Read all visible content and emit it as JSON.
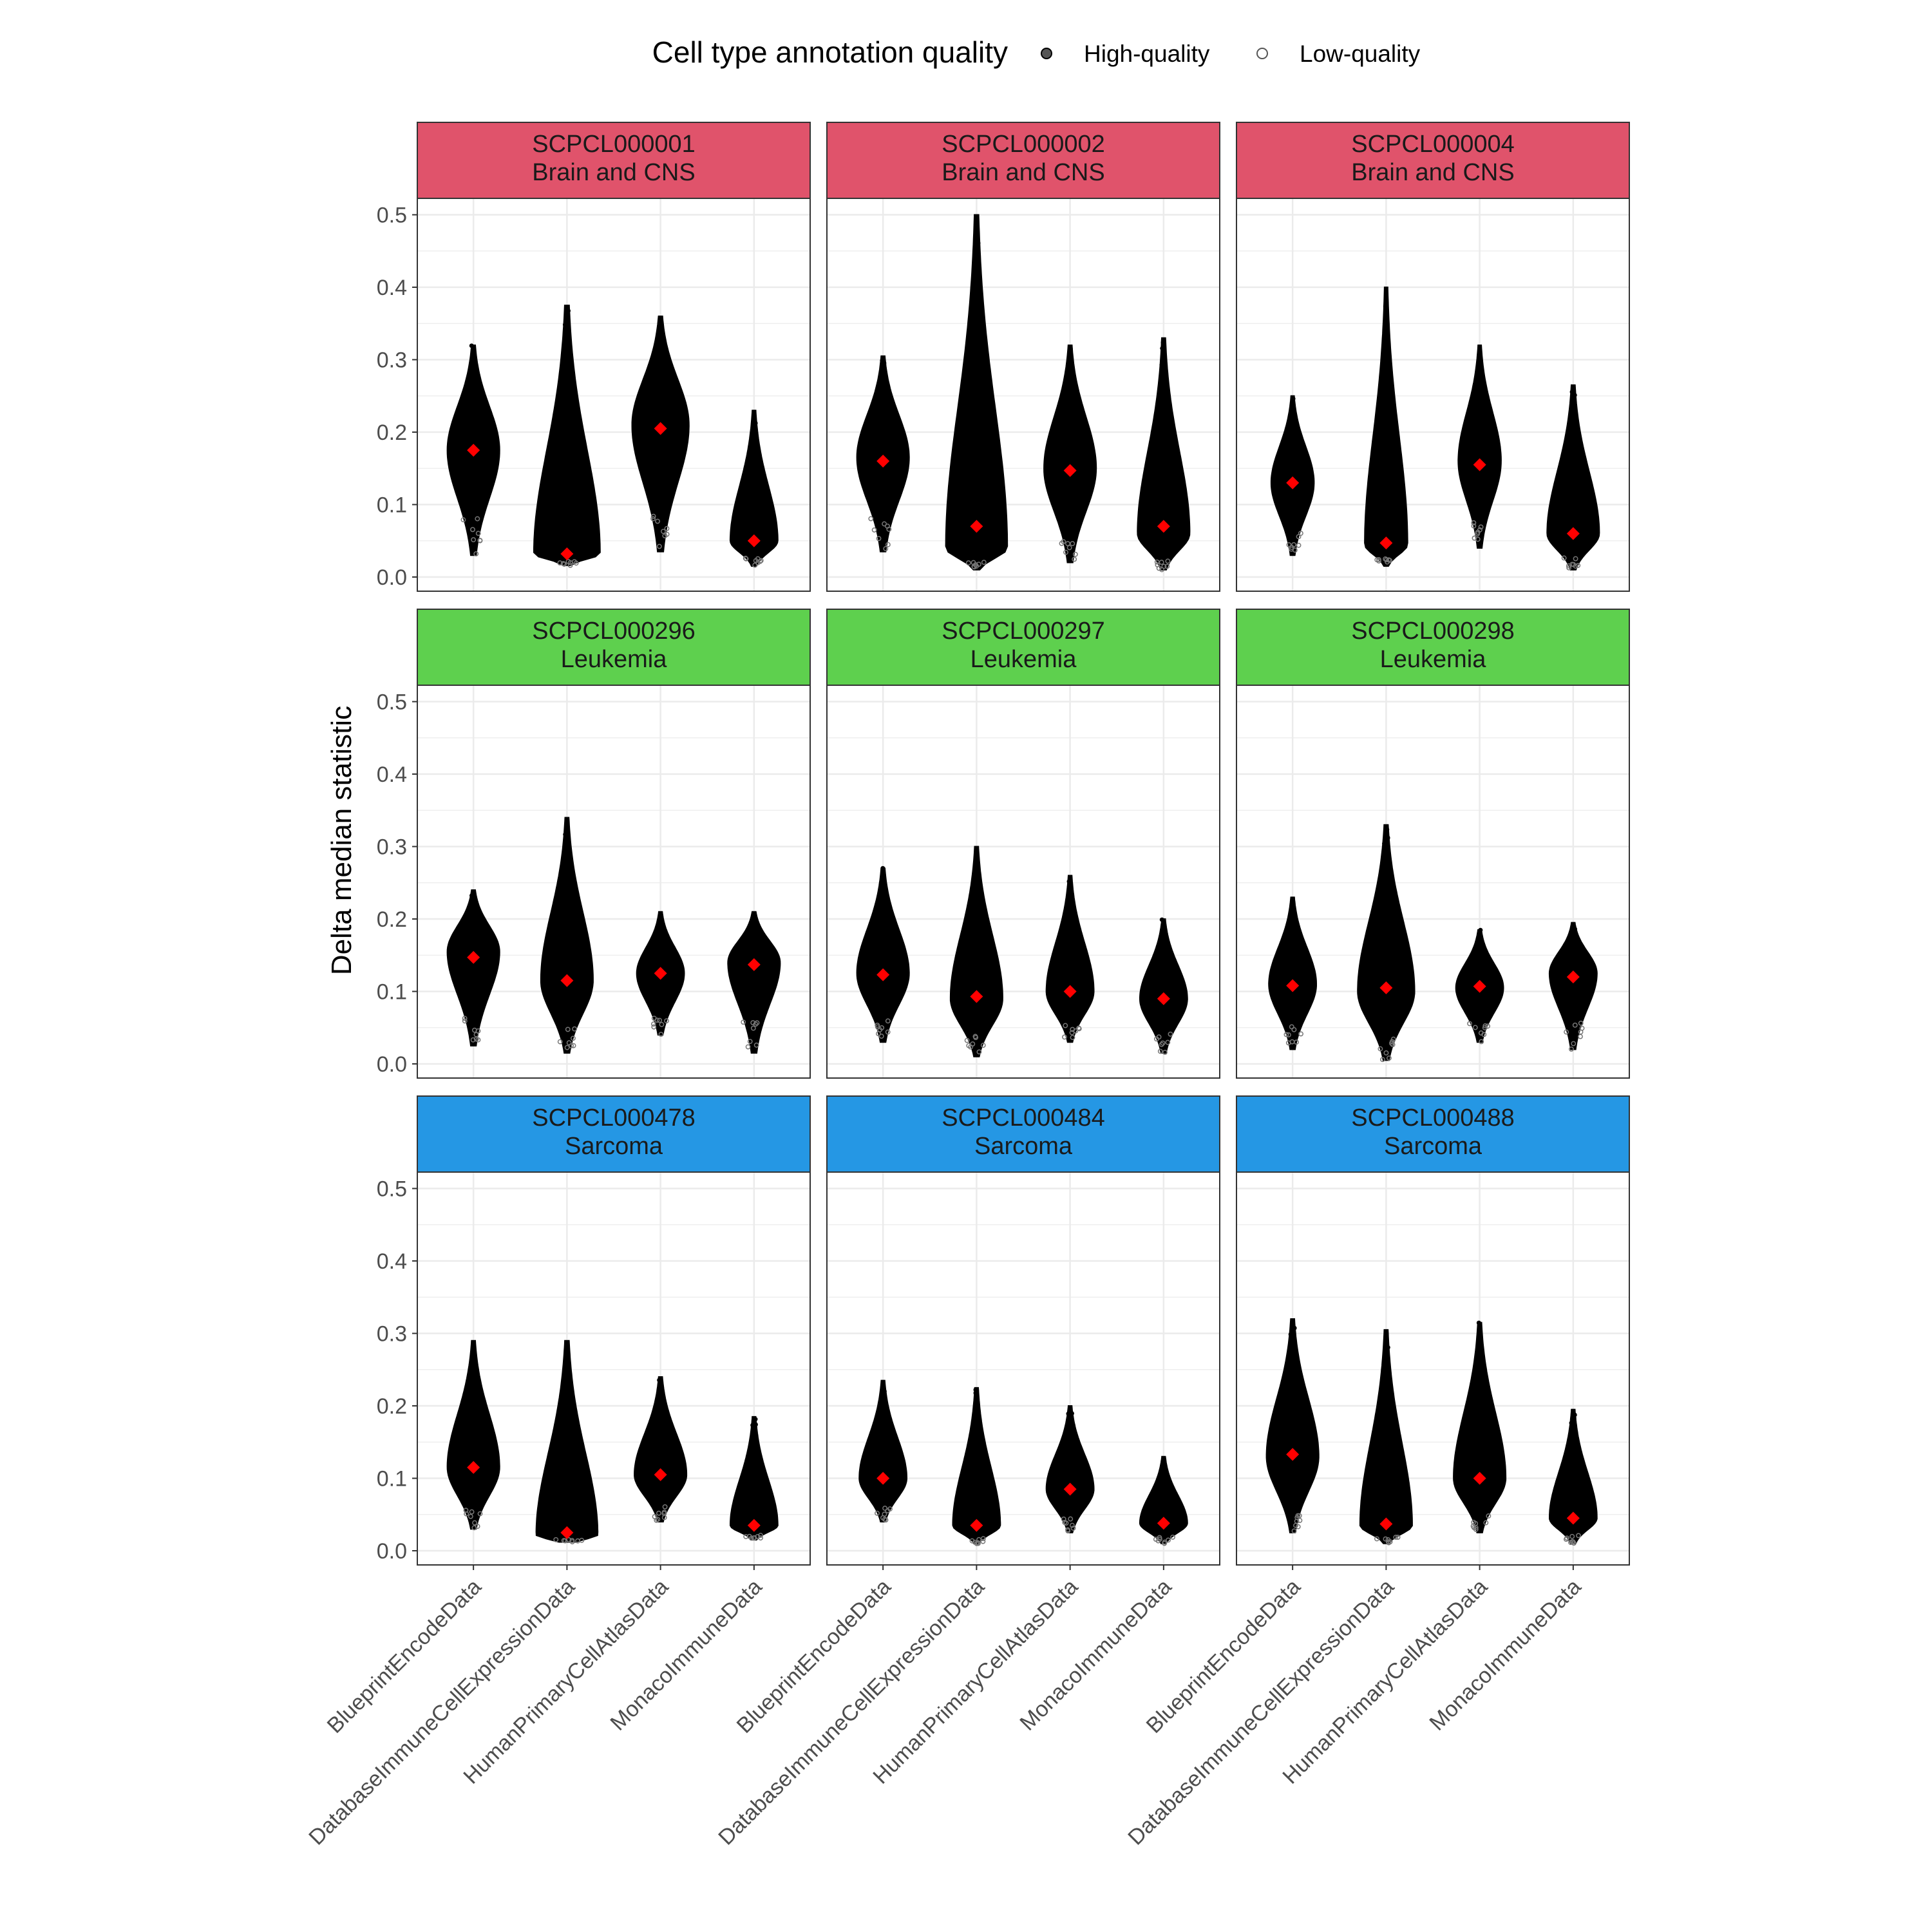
{
  "chart_data": {
    "type": "violin",
    "ylabel": "Delta median statistic",
    "xlabel": "",
    "ylim": [
      0,
      0.52
    ],
    "yticks": [
      "0.0",
      "0.1",
      "0.2",
      "0.3",
      "0.4",
      "0.5"
    ],
    "grid": true,
    "legend": {
      "title": "Cell type annotation quality",
      "position": "top",
      "entries": [
        {
          "label": "High-quality",
          "style": "filled"
        },
        {
          "label": "Low-quality",
          "style": "hollow"
        }
      ]
    },
    "categories": [
      "BlueprintEncodeData",
      "DatabaseImmuneCellExpressionData",
      "HumanPrimaryCellAtlasData",
      "MonacoImmuneData"
    ],
    "colors": {
      "Brain and CNS": "#E0536B",
      "Leukemia": "#5ED04E",
      "Sarcoma": "#2597E4",
      "mean_marker": "#FF0000"
    },
    "panels": [
      {
        "library": "SCPCL000001",
        "diagnosis": "Brain and CNS",
        "violins": [
          {
            "mode": 0.175,
            "min": 0.03,
            "max": 0.32,
            "width": 0.55,
            "mean": 0.175
          },
          {
            "mode": 0.032,
            "min": 0.016,
            "max": 0.375,
            "width": 0.7,
            "mean": 0.032
          },
          {
            "mode": 0.21,
            "min": 0.035,
            "max": 0.36,
            "width": 0.6,
            "mean": 0.205
          },
          {
            "mode": 0.05,
            "min": 0.015,
            "max": 0.23,
            "width": 0.5,
            "mean": 0.05
          }
        ]
      },
      {
        "library": "SCPCL000002",
        "diagnosis": "Brain and CNS",
        "violins": [
          {
            "mode": 0.165,
            "min": 0.035,
            "max": 0.305,
            "width": 0.55,
            "mean": 0.16
          },
          {
            "mode": 0.04,
            "min": 0.01,
            "max": 0.5,
            "width": 0.65,
            "mean": 0.07
          },
          {
            "mode": 0.15,
            "min": 0.02,
            "max": 0.32,
            "width": 0.55,
            "mean": 0.147
          },
          {
            "mode": 0.06,
            "min": 0.01,
            "max": 0.33,
            "width": 0.55,
            "mean": 0.07
          }
        ]
      },
      {
        "library": "SCPCL000004",
        "diagnosis": "Brain and CNS",
        "violins": [
          {
            "mode": 0.13,
            "min": 0.03,
            "max": 0.25,
            "width": 0.45,
            "mean": 0.13
          },
          {
            "mode": 0.045,
            "min": 0.015,
            "max": 0.4,
            "width": 0.45,
            "mean": 0.047
          },
          {
            "mode": 0.16,
            "min": 0.04,
            "max": 0.32,
            "width": 0.45,
            "mean": 0.155
          },
          {
            "mode": 0.06,
            "min": 0.01,
            "max": 0.265,
            "width": 0.55,
            "mean": 0.06
          }
        ]
      },
      {
        "library": "SCPCL000296",
        "diagnosis": "Leukemia",
        "violins": [
          {
            "mode": 0.155,
            "min": 0.025,
            "max": 0.24,
            "width": 0.55,
            "mean": 0.147
          },
          {
            "mode": 0.115,
            "min": 0.015,
            "max": 0.34,
            "width": 0.55,
            "mean": 0.115
          },
          {
            "mode": 0.125,
            "min": 0.04,
            "max": 0.21,
            "width": 0.5,
            "mean": 0.125
          },
          {
            "mode": 0.14,
            "min": 0.015,
            "max": 0.21,
            "width": 0.55,
            "mean": 0.137
          }
        ]
      },
      {
        "library": "SCPCL000297",
        "diagnosis": "Leukemia",
        "violins": [
          {
            "mode": 0.125,
            "min": 0.03,
            "max": 0.27,
            "width": 0.55,
            "mean": 0.123
          },
          {
            "mode": 0.09,
            "min": 0.01,
            "max": 0.3,
            "width": 0.55,
            "mean": 0.093
          },
          {
            "mode": 0.1,
            "min": 0.03,
            "max": 0.26,
            "width": 0.5,
            "mean": 0.1
          },
          {
            "mode": 0.09,
            "min": 0.015,
            "max": 0.2,
            "width": 0.5,
            "mean": 0.09
          }
        ]
      },
      {
        "library": "SCPCL000298",
        "diagnosis": "Leukemia",
        "violins": [
          {
            "mode": 0.11,
            "min": 0.02,
            "max": 0.23,
            "width": 0.5,
            "mean": 0.108
          },
          {
            "mode": 0.1,
            "min": 0.005,
            "max": 0.33,
            "width": 0.6,
            "mean": 0.105
          },
          {
            "mode": 0.105,
            "min": 0.03,
            "max": 0.185,
            "width": 0.5,
            "mean": 0.107
          },
          {
            "mode": 0.125,
            "min": 0.02,
            "max": 0.195,
            "width": 0.5,
            "mean": 0.12
          }
        ]
      },
      {
        "library": "SCPCL000478",
        "diagnosis": "Sarcoma",
        "violins": [
          {
            "mode": 0.115,
            "min": 0.03,
            "max": 0.29,
            "width": 0.55,
            "mean": 0.115
          },
          {
            "mode": 0.022,
            "min": 0.012,
            "max": 0.29,
            "width": 0.65,
            "mean": 0.025
          },
          {
            "mode": 0.105,
            "min": 0.04,
            "max": 0.24,
            "width": 0.55,
            "mean": 0.105
          },
          {
            "mode": 0.035,
            "min": 0.015,
            "max": 0.185,
            "width": 0.5,
            "mean": 0.035
          }
        ]
      },
      {
        "library": "SCPCL000484",
        "diagnosis": "Sarcoma",
        "violins": [
          {
            "mode": 0.1,
            "min": 0.04,
            "max": 0.235,
            "width": 0.5,
            "mean": 0.1
          },
          {
            "mode": 0.035,
            "min": 0.01,
            "max": 0.225,
            "width": 0.5,
            "mean": 0.035
          },
          {
            "mode": 0.085,
            "min": 0.025,
            "max": 0.2,
            "width": 0.5,
            "mean": 0.085
          },
          {
            "mode": 0.038,
            "min": 0.01,
            "max": 0.13,
            "width": 0.5,
            "mean": 0.038
          }
        ]
      },
      {
        "library": "SCPCL000488",
        "diagnosis": "Sarcoma",
        "violins": [
          {
            "mode": 0.13,
            "min": 0.025,
            "max": 0.32,
            "width": 0.55,
            "mean": 0.133
          },
          {
            "mode": 0.035,
            "min": 0.01,
            "max": 0.305,
            "width": 0.55,
            "mean": 0.037
          },
          {
            "mode": 0.1,
            "min": 0.025,
            "max": 0.315,
            "width": 0.55,
            "mean": 0.1
          },
          {
            "mode": 0.045,
            "min": 0.01,
            "max": 0.195,
            "width": 0.5,
            "mean": 0.045
          }
        ]
      }
    ]
  }
}
